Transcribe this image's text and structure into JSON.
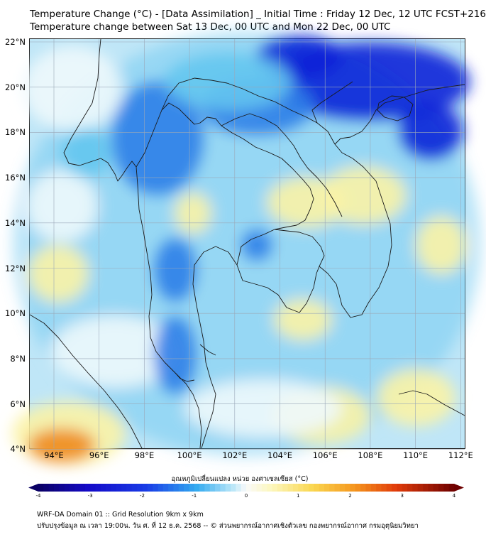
{
  "header": {
    "title_line1": "Temperature Change (°C) - [Data Assimilation] _ Initial Time : Friday 12 Dec, 12 UTC FCST+216",
    "title_line2": "Temperature change between Sat 13 Dec, 00 UTC and Mon 22 Dec, 00 UTC"
  },
  "map": {
    "lat_labels": [
      "22°N",
      "20°N",
      "18°N",
      "16°N",
      "14°N",
      "12°N",
      "10°N",
      "8°N",
      "6°N",
      "4°N"
    ],
    "lon_labels": [
      "94°E",
      "96°E",
      "98°E",
      "100°E",
      "102°E",
      "104°E",
      "106°E",
      "108°E",
      "110°E",
      "112°E"
    ],
    "field_colors": {
      "background": "#bfe6f7",
      "strong_cooling": "#0a22d8",
      "moderate_cooling": "#2f7ee8",
      "light_cooling": "#64c5f0",
      "near_zero": "#eef8fc",
      "light_warming": "#fbf3a6",
      "moderate_warming": "#f6d25a",
      "strong_warming": "#f08a1c"
    },
    "coastline_color": "#1a1a1a",
    "grid_color": "#9aa8b8"
  },
  "colorbar": {
    "title": "อุณหภูมิเปลี่ยนแปลง หน่วย องศาเซลเซียส (°C)",
    "ticks": [
      "-4",
      "-3",
      "-2",
      "-1",
      "0",
      "1",
      "2",
      "3",
      "4"
    ],
    "range": [
      -4,
      4
    ]
  },
  "footer": {
    "line1": "WRF-DA Domain 01 :: Grid Resolution 9km x 9km",
    "line2": "ปรับปรุงข้อมูล ณ เวลา 19:00น. วัน ศ. ที่ 12 ธ.ค. 2568 -- © ส่วนพยากรณ์อากาศเชิงตัวเลข กองพยากรณ์อากาศ กรมอุตุนิยมวิทยา"
  }
}
